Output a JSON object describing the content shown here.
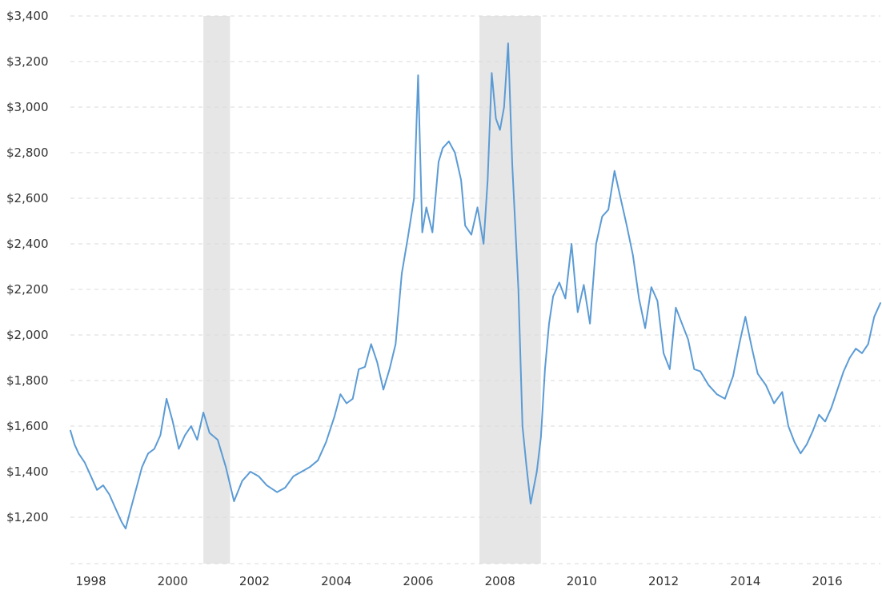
{
  "chart_data": {
    "type": "line",
    "title": "",
    "xlabel": "",
    "ylabel": "",
    "xlim": [
      1997.5,
      2017.3
    ],
    "ylim": [
      1080,
      3400
    ],
    "y_ticks": [
      1200,
      1400,
      1600,
      1800,
      2000,
      2200,
      2400,
      2600,
      2800,
      3000,
      3200,
      3400
    ],
    "y_tick_labels": [
      "$1,200",
      "$1,400",
      "$1,600",
      "$1,800",
      "$2,000",
      "$2,200",
      "$2,400",
      "$2,600",
      "$2,800",
      "$3,000",
      "$3,200",
      "$3,400"
    ],
    "x_ticks": [
      1998,
      2000,
      2002,
      2004,
      2006,
      2008,
      2010,
      2012,
      2014,
      2016
    ],
    "x_tick_labels": [
      "1998",
      "2000",
      "2002",
      "2004",
      "2006",
      "2008",
      "2010",
      "2012",
      "2014",
      "2016"
    ],
    "grid": true,
    "shaded_periods": [
      {
        "start": 2000.75,
        "end": 2001.4
      },
      {
        "start": 2007.5,
        "end": 2009.0
      }
    ],
    "colors": {
      "line": "#5b9bd5",
      "recession": "#e6e6e6",
      "grid": "#d9d9d9",
      "text": "#333333"
    },
    "series": [
      {
        "x": [
          1997.5,
          1997.6,
          1997.7,
          1997.85,
          1998.0,
          1998.15,
          1998.3,
          1998.45,
          1998.6,
          1998.75,
          1998.85,
          1998.95,
          1999.1,
          1999.25,
          1999.4,
          1999.55,
          1999.7,
          1999.85,
          2000.0,
          2000.15,
          2000.3,
          2000.45,
          2000.6,
          2000.75,
          2000.9,
          2001.1,
          2001.3,
          2001.5,
          2001.7,
          2001.9,
          2002.1,
          2002.3,
          2002.55,
          2002.75,
          2002.95,
          2003.15,
          2003.35,
          2003.55,
          2003.75,
          2003.95,
          2004.1,
          2004.25,
          2004.4,
          2004.55,
          2004.7,
          2004.85,
          2005.0,
          2005.15,
          2005.3,
          2005.45,
          2005.6,
          2005.75,
          2005.9,
          2006.0,
          2006.1,
          2006.2,
          2006.35,
          2006.5,
          2006.6,
          2006.75,
          2006.9,
          2007.05,
          2007.15,
          2007.3,
          2007.45,
          2007.6,
          2007.7,
          2007.8,
          2007.9,
          2008.0,
          2008.1,
          2008.2,
          2008.3,
          2008.45,
          2008.55,
          2008.65,
          2008.75,
          2008.9,
          2009.0,
          2009.1,
          2009.2,
          2009.3,
          2009.45,
          2009.6,
          2009.75,
          2009.9,
          2010.05,
          2010.2,
          2010.35,
          2010.5,
          2010.65,
          2010.8,
          2010.95,
          2011.1,
          2011.25,
          2011.4,
          2011.55,
          2011.7,
          2011.85,
          2012.0,
          2012.15,
          2012.3,
          2012.45,
          2012.6,
          2012.75,
          2012.9,
          2013.1,
          2013.3,
          2013.5,
          2013.7,
          2013.85,
          2014.0,
          2014.15,
          2014.3,
          2014.5,
          2014.7,
          2014.9,
          2015.05,
          2015.2,
          2015.35,
          2015.5,
          2015.65,
          2015.8,
          2015.95,
          2016.1,
          2016.25,
          2016.4,
          2016.55,
          2016.7,
          2016.85,
          2017.0,
          2017.15,
          2017.3
        ],
        "values": [
          1580,
          1520,
          1480,
          1440,
          1380,
          1320,
          1340,
          1300,
          1240,
          1180,
          1150,
          1220,
          1320,
          1420,
          1480,
          1500,
          1560,
          1720,
          1620,
          1500,
          1560,
          1600,
          1540,
          1660,
          1570,
          1540,
          1420,
          1270,
          1360,
          1400,
          1380,
          1340,
          1310,
          1330,
          1380,
          1400,
          1420,
          1450,
          1530,
          1640,
          1740,
          1700,
          1720,
          1850,
          1860,
          1960,
          1880,
          1760,
          1850,
          1960,
          2270,
          2430,
          2600,
          3140,
          2450,
          2560,
          2450,
          2760,
          2820,
          2850,
          2800,
          2680,
          2480,
          2440,
          2560,
          2400,
          2680,
          3150,
          2950,
          2900,
          3000,
          3280,
          2750,
          2200,
          1600,
          1420,
          1260,
          1400,
          1550,
          1850,
          2050,
          2170,
          2230,
          2160,
          2400,
          2100,
          2220,
          2050,
          2400,
          2520,
          2550,
          2720,
          2600,
          2480,
          2350,
          2160,
          2030,
          2210,
          2150,
          1920,
          1850,
          2120,
          2050,
          1980,
          1850,
          1840,
          1780,
          1740,
          1720,
          1820,
          1960,
          2080,
          1950,
          1830,
          1780,
          1700,
          1750,
          1600,
          1530,
          1480,
          1520,
          1580,
          1650,
          1620,
          1680,
          1760,
          1840,
          1900,
          1940,
          1920,
          1960,
          2080,
          2140
        ]
      }
    ]
  }
}
